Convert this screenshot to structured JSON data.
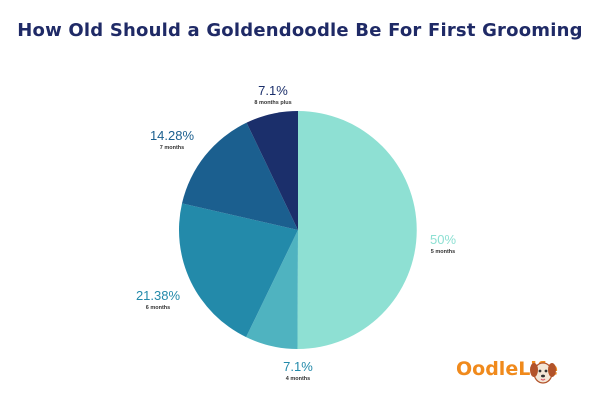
{
  "chart_data": {
    "type": "pie",
    "title": "How Old Should a Goldendoodle Be For First Grooming",
    "slices": [
      {
        "value": 50,
        "label": "50%",
        "category": "5 months",
        "color": "#8ee0d3"
      },
      {
        "value": 7.1,
        "label": "7.1%",
        "category": "4 months",
        "color": "#4fb3c0"
      },
      {
        "value": 21.38,
        "label": "21.38%",
        "category": "6 months",
        "color": "#238aaa"
      },
      {
        "value": 14.28,
        "label": "14.28%",
        "category": "7 months",
        "color": "#1b5f8f"
      },
      {
        "value": 7.1,
        "label": "7.1%",
        "category": "8 months plus",
        "color": "#1b2f6b"
      }
    ]
  },
  "logo": {
    "part1": "Oodle",
    "part2": "Life"
  }
}
